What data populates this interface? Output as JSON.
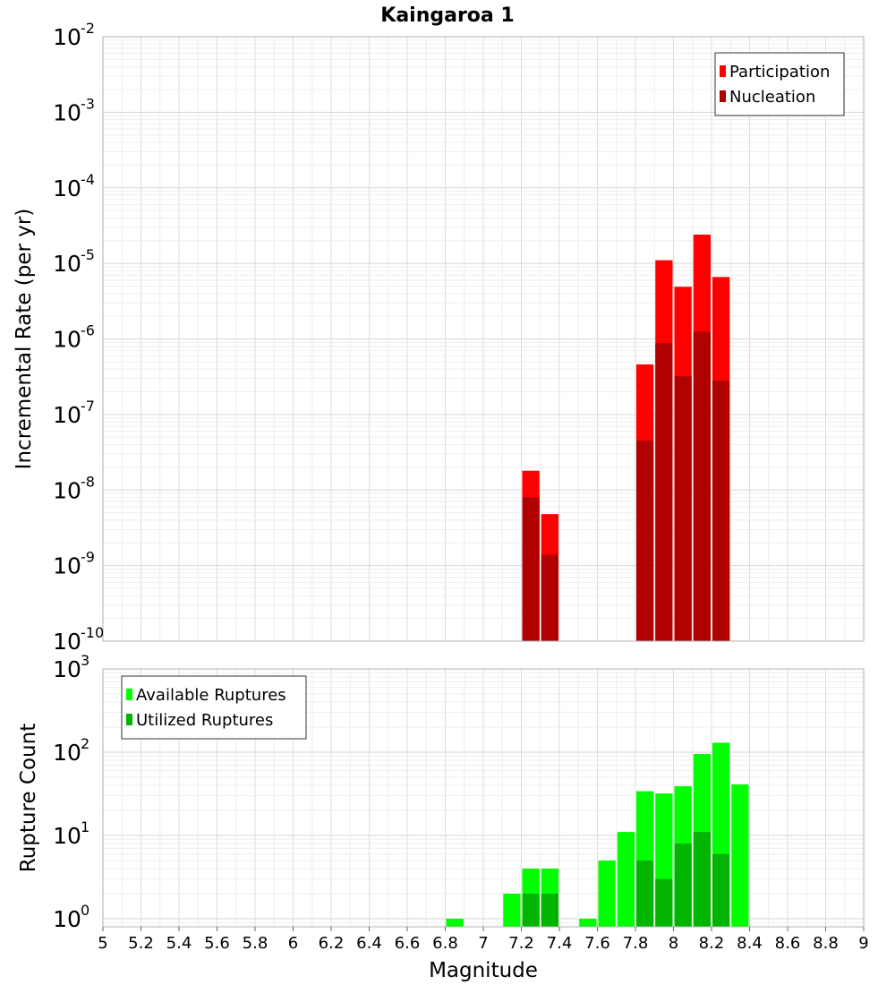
{
  "chart_data": [
    {
      "type": "bar",
      "title": "Kaingaroa 1",
      "xlabel": "",
      "ylabel": "Incremental Rate (per yr)",
      "xlim": [
        5,
        9
      ],
      "ylim": [
        1e-10,
        0.01
      ],
      "yscale": "log",
      "y_ticks": [
        {
          "base": "10",
          "exp": "-10",
          "value": 1e-10
        },
        {
          "base": "10",
          "exp": "-9",
          "value": 1e-09
        },
        {
          "base": "10",
          "exp": "-8",
          "value": 1e-08
        },
        {
          "base": "10",
          "exp": "-7",
          "value": 1e-07
        },
        {
          "base": "10",
          "exp": "-6",
          "value": 1e-06
        },
        {
          "base": "10",
          "exp": "-5",
          "value": 1e-05
        },
        {
          "base": "10",
          "exp": "-4",
          "value": 0.0001
        },
        {
          "base": "10",
          "exp": "-3",
          "value": 0.001
        },
        {
          "base": "10",
          "exp": "-2",
          "value": 0.01
        }
      ],
      "grid": true,
      "legend_position": "top-right",
      "bar_width": 0.1,
      "x": [
        7.25,
        7.35,
        7.85,
        7.95,
        8.05,
        8.15,
        8.25
      ],
      "series": [
        {
          "name": "Participation",
          "color": "#ff0000",
          "values": [
            1.8e-08,
            4.8e-09,
            4.6e-07,
            1.1e-05,
            4.9e-06,
            2.4e-05,
            6.6e-06
          ]
        },
        {
          "name": "Nucleation",
          "color": "#b00000",
          "values": [
            8e-09,
            1.4e-09,
            4.5e-08,
            8.8e-07,
            3.2e-07,
            1.25e-06,
            2.8e-07
          ]
        }
      ]
    },
    {
      "type": "bar",
      "title": "",
      "xlabel": "Magnitude",
      "ylabel": "Rupture Count",
      "xlim": [
        5,
        9
      ],
      "ylim": [
        0.8,
        1000
      ],
      "yscale": "log",
      "y_ticks": [
        {
          "base": "10",
          "exp": "0",
          "value": 1
        },
        {
          "base": "10",
          "exp": "1",
          "value": 10
        },
        {
          "base": "10",
          "exp": "2",
          "value": 100
        },
        {
          "base": "10",
          "exp": "3",
          "value": 1000
        }
      ],
      "x_ticks": [
        "5",
        "5.2",
        "5.4",
        "5.6",
        "5.8",
        "6",
        "6.2",
        "6.4",
        "6.6",
        "6.8",
        "7",
        "7.2",
        "7.4",
        "7.6",
        "7.8",
        "8",
        "8.2",
        "8.4",
        "8.6",
        "8.8",
        "9"
      ],
      "grid": true,
      "legend_position": "top-left",
      "bar_width": 0.1,
      "series": [
        {
          "name": "Available Ruptures",
          "color": "#00ff00",
          "x": [
            6.85,
            7.15,
            7.25,
            7.35,
            7.55,
            7.65,
            7.75,
            7.85,
            7.95,
            8.05,
            8.15,
            8.25,
            8.35
          ],
          "values": [
            1,
            2,
            4,
            4,
            1,
            5,
            11,
            34,
            32,
            39,
            95,
            130,
            41
          ]
        },
        {
          "name": "Utilized Ruptures",
          "color": "#00b400",
          "x": [
            7.25,
            7.35,
            7.85,
            7.95,
            8.05,
            8.15,
            8.25
          ],
          "values": [
            2,
            2,
            5,
            3,
            8,
            11,
            6
          ]
        }
      ]
    }
  ]
}
